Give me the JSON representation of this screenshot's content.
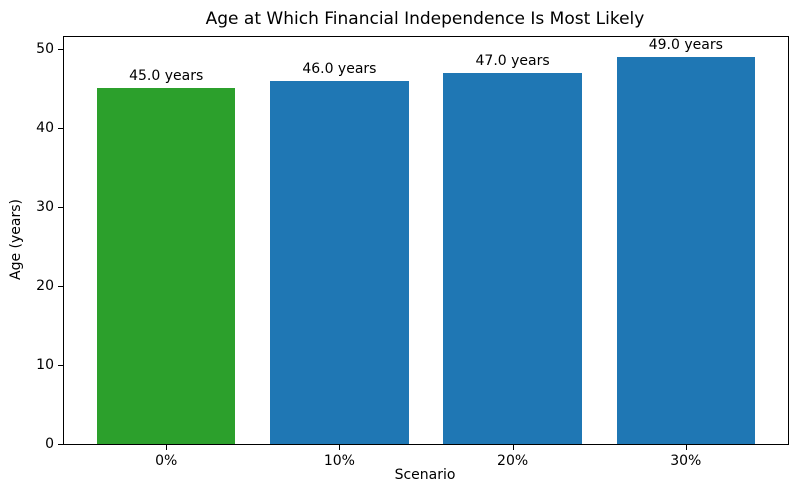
{
  "chart_data": {
    "type": "bar",
    "title": "Age at Which Financial Independence Is Most Likely",
    "xlabel": "Scenario",
    "ylabel": "Age (years)",
    "categories": [
      "0%",
      "10%",
      "20%",
      "30%"
    ],
    "values": [
      45.0,
      46.0,
      47.0,
      49.0
    ],
    "bar_labels": [
      "45.0 years",
      "46.0 years",
      "47.0 years",
      "49.0 years"
    ],
    "bar_colors": [
      "#2ca02c",
      "#1f77b4",
      "#1f77b4",
      "#1f77b4"
    ],
    "ylim": [
      0,
      51.5
    ],
    "yticks": [
      0,
      10,
      20,
      30,
      40,
      50
    ],
    "grid": false,
    "legend_position": "none",
    "background_color": "#ffffff"
  }
}
